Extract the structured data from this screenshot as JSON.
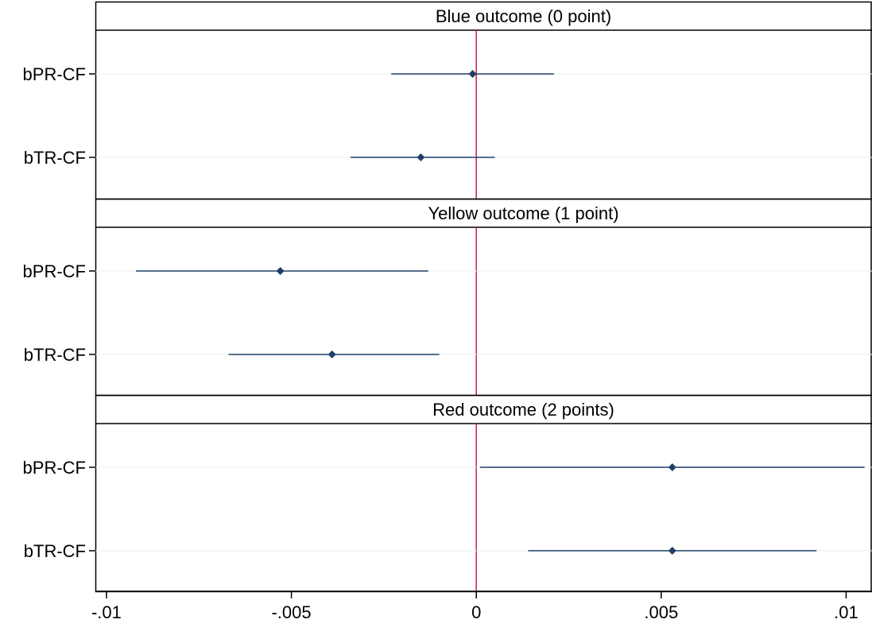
{
  "chart_data": {
    "type": "coefficient-plot",
    "x_ticks": [
      -0.01,
      -0.005,
      0,
      0.005,
      0.01
    ],
    "x_tick_labels": [
      "-.01",
      "-.005",
      "0",
      ".005",
      ".01"
    ],
    "xlim": [
      -0.0103,
      0.0107
    ],
    "reference_line": 0,
    "colors": {
      "marker": "#1f3f66",
      "reference": "#c8204a",
      "grid": "#e9eef2"
    },
    "panels": [
      {
        "title": "Blue outcome (0 point)",
        "rows": [
          {
            "label": "bPR-CF",
            "estimate": -0.0001,
            "ci_low": -0.0023,
            "ci_high": 0.0021
          },
          {
            "label": "bTR-CF",
            "estimate": -0.0015,
            "ci_low": -0.0034,
            "ci_high": 0.0005
          }
        ]
      },
      {
        "title": "Yellow outcome (1 point)",
        "rows": [
          {
            "label": "bPR-CF",
            "estimate": -0.0053,
            "ci_low": -0.0092,
            "ci_high": -0.0013
          },
          {
            "label": "bTR-CF",
            "estimate": -0.0039,
            "ci_low": -0.0067,
            "ci_high": -0.001
          }
        ]
      },
      {
        "title": "Red outcome (2 points)",
        "rows": [
          {
            "label": "bPR-CF",
            "estimate": 0.0053,
            "ci_low": 0.0001,
            "ci_high": 0.0105
          },
          {
            "label": "bTR-CF",
            "estimate": 0.0053,
            "ci_low": 0.0014,
            "ci_high": 0.0092
          }
        ]
      }
    ]
  }
}
